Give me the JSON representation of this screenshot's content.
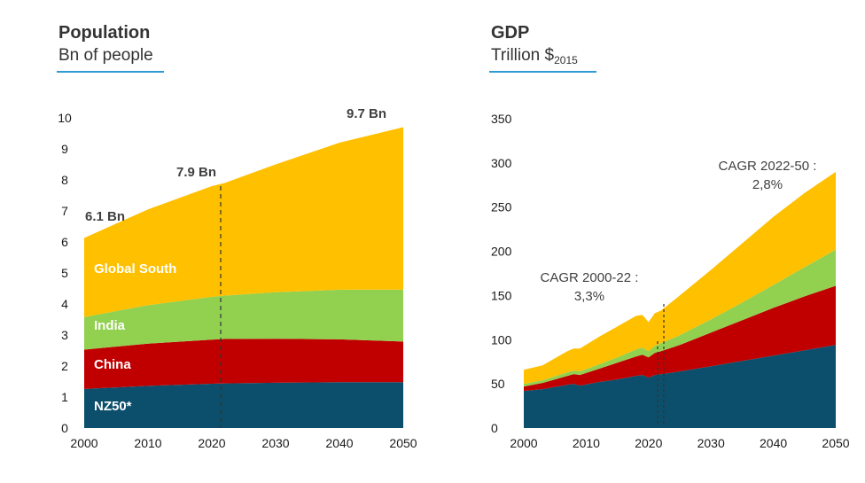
{
  "chart_data": [
    {
      "type": "area",
      "stacked": true,
      "title": "Population",
      "subtitle": "Bn of people",
      "x": [
        2000,
        2010,
        2020,
        2022,
        2030,
        2040,
        2050
      ],
      "xticks": [
        "2000",
        "2010",
        "2020",
        "2030",
        "2040",
        "2050"
      ],
      "yticks": [
        "0",
        "1",
        "2",
        "3",
        "4",
        "5",
        "6",
        "7",
        "8",
        "9",
        "10"
      ],
      "ylim": [
        0,
        10
      ],
      "series": [
        {
          "name": "NZ50*",
          "color": "#0b4f6c",
          "values": [
            1.26,
            1.36,
            1.43,
            1.44,
            1.46,
            1.48,
            1.48
          ]
        },
        {
          "name": "China",
          "color": "#c00000",
          "values": [
            1.27,
            1.36,
            1.42,
            1.43,
            1.42,
            1.38,
            1.31
          ]
        },
        {
          "name": "India",
          "color": "#92d050",
          "values": [
            1.05,
            1.24,
            1.38,
            1.4,
            1.5,
            1.6,
            1.67
          ]
        },
        {
          "name": "Global South",
          "color": "#ffc000",
          "values": [
            2.55,
            3.09,
            3.57,
            3.63,
            4.12,
            4.74,
            5.24
          ]
        }
      ],
      "annotations": [
        "6.1 Bn",
        "7.9 Bn",
        "9.7 Bn"
      ]
    },
    {
      "type": "area",
      "stacked": true,
      "title": "GDP",
      "subtitle": "Trillion $",
      "subtitle_sub": "2015",
      "x": [
        2000,
        2003,
        2007,
        2008,
        2009,
        2012,
        2015,
        2018,
        2019,
        2020,
        2021,
        2022,
        2025,
        2030,
        2035,
        2040,
        2045,
        2050
      ],
      "xticks": [
        "2000",
        "2010",
        "2020",
        "2030",
        "2040",
        "2050"
      ],
      "yticks": [
        "0",
        "50",
        "100",
        "150",
        "200",
        "250",
        "300",
        "350"
      ],
      "ylim": [
        0,
        350
      ],
      "series": [
        {
          "name": "NZ50*",
          "values": [
            42,
            44,
            49,
            50,
            48,
            52,
            55,
            59,
            60,
            57,
            60,
            61,
            64,
            70,
            76,
            82,
            88,
            94
          ]
        },
        {
          "name": "China",
          "values": [
            5,
            7,
            10,
            11,
            12,
            15,
            19,
            22,
            23,
            23,
            25,
            26,
            30,
            38,
            46,
            54,
            61,
            67
          ]
        },
        {
          "name": "India",
          "values": [
            3,
            3,
            4,
            4,
            4,
            5,
            6,
            8,
            8,
            7,
            8,
            9,
            11,
            15,
            20,
            26,
            33,
            41
          ]
        },
        {
          "name": "Global South",
          "values": [
            16,
            17,
            24,
            25,
            26,
            31,
            35,
            38,
            37,
            33,
            37,
            37,
            45,
            56,
            67,
            77,
            84,
            88
          ]
        }
      ],
      "annotations": [
        "CAGR 2000-22 :",
        "3,3%",
        "CAGR 2022-50 :",
        "2,8%"
      ]
    }
  ]
}
